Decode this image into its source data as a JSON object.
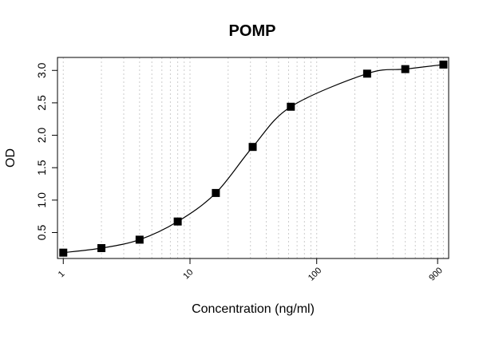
{
  "chart_data": {
    "type": "scatter",
    "title": "POMP",
    "xlabel": "Concentration (ng/ml)",
    "ylabel": "OD",
    "x_scale": "log",
    "xlim": [
      0.9,
      1100
    ],
    "ylim": [
      0.1,
      3.2
    ],
    "x_tick_labels": [
      "1",
      "10",
      "100",
      "900"
    ],
    "x_tick_values": [
      1,
      10,
      100,
      900
    ],
    "y_ticks": [
      0.5,
      1.0,
      1.5,
      2.0,
      2.5,
      3.0
    ],
    "y_tick_labels": [
      "0.5",
      "1.0",
      "1.5",
      "2.0",
      "2.5",
      "3.0"
    ],
    "grid": "vertical",
    "series": [
      {
        "x": [
          1,
          2,
          4,
          8,
          16,
          31.25,
          62.5,
          250,
          500,
          1000
        ],
        "y": [
          0.19,
          0.26,
          0.39,
          0.67,
          1.11,
          1.82,
          2.44,
          2.95,
          3.02,
          3.09
        ]
      }
    ],
    "fit_curve": "4PL sigmoid fit through points"
  }
}
